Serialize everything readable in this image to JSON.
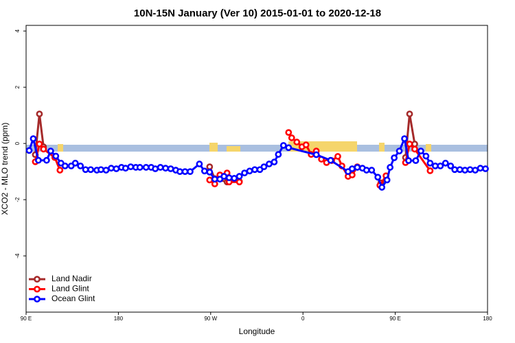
{
  "chart_data": {
    "type": "line",
    "title": "10N-15N January (Ver 10)   2015-01-01 to 2020-12-18",
    "x_label": "Longitude",
    "y_label": "XCO2 - MLO trend (ppm)",
    "xlim": [
      90,
      540
    ],
    "ylim": [
      -6,
      4.2
    ],
    "xticks": [
      {
        "value": 90,
        "label": "90 E"
      },
      {
        "value": 180,
        "label": "180"
      },
      {
        "value": 270,
        "label": "90 W"
      },
      {
        "value": 360,
        "label": "0"
      },
      {
        "value": 450,
        "label": "90 E"
      },
      {
        "value": 540,
        "label": "180"
      }
    ],
    "yticks": [
      -4,
      -2,
      0,
      2,
      4
    ],
    "legend": "bottomleft",
    "series": [
      {
        "name": "Land Nadir",
        "color": "#a52a2a",
        "x": [
          99,
          103,
          107,
          200,
          269,
          274,
          286,
          298,
          400,
          436,
          450,
          460,
          464,
          469
        ],
        "values": [
          -0.4,
          1.05,
          -0.12,
          null,
          -0.83,
          -1.25,
          -1.37,
          -1.35,
          null,
          -1.4,
          null,
          -0.5,
          1.05,
          -0.02
        ]
      },
      {
        "name": "Land Glint",
        "color": "#ff0000",
        "x": [
          99,
          103,
          107,
          118,
          123,
          200,
          269,
          274,
          279,
          286,
          288,
          298,
          320,
          346,
          349,
          354,
          359,
          363,
          368,
          373,
          378,
          383,
          388,
          394,
          398,
          404,
          408,
          413,
          425,
          435,
          441,
          450,
          460,
          464,
          469,
          484
        ],
        "values": [
          -0.65,
          -0.02,
          -0.2,
          -0.5,
          -0.95,
          null,
          -1.3,
          -1.44,
          -1.12,
          -1.05,
          -1.37,
          -1.37,
          null,
          0.39,
          0.2,
          0.05,
          -0.12,
          -0.05,
          -0.39,
          -0.27,
          -0.56,
          -0.68,
          -0.61,
          -0.46,
          -0.8,
          -1.17,
          -1.12,
          -0.83,
          null,
          -1.49,
          -1.15,
          null,
          -0.68,
          -0.02,
          -0.2,
          -0.97
        ]
      },
      {
        "name": "Ocean Glint",
        "color": "#0000ff",
        "x": [
          93,
          97,
          102,
          110,
          114,
          119,
          124,
          128,
          134,
          138,
          143,
          148,
          153,
          159,
          163,
          168,
          173,
          178,
          183,
          187,
          192,
          197,
          201,
          207,
          212,
          216,
          221,
          226,
          231,
          236,
          240,
          245,
          250,
          259,
          264,
          269,
          274,
          279,
          283,
          288,
          293,
          298,
          303,
          308,
          313,
          318,
          322,
          327,
          332,
          336,
          341,
          346,
          373,
          387,
          404,
          408,
          413,
          418,
          422,
          427,
          433,
          437,
          442,
          445,
          449,
          454,
          459,
          463,
          470,
          475,
          480,
          484,
          489,
          494,
          499,
          504,
          508,
          513,
          518,
          523,
          528,
          533,
          538
        ],
        "values": [
          -0.25,
          0.17,
          -0.6,
          -0.6,
          -0.27,
          -0.45,
          -0.7,
          -0.8,
          -0.8,
          -0.7,
          -0.8,
          -0.93,
          -0.93,
          -0.95,
          -0.93,
          -0.95,
          -0.88,
          -0.9,
          -0.85,
          -0.88,
          -0.83,
          -0.85,
          -0.85,
          -0.85,
          -0.85,
          -0.9,
          -0.85,
          -0.88,
          -0.9,
          -0.95,
          -1.0,
          -1.0,
          -1.0,
          -0.73,
          -0.98,
          -1.02,
          -1.27,
          -1.27,
          -1.17,
          -1.22,
          -1.24,
          -1.17,
          -1.05,
          -0.98,
          -0.93,
          -0.93,
          -0.83,
          -0.73,
          -0.66,
          -0.39,
          -0.07,
          -0.15,
          -0.4,
          -0.6,
          -1.0,
          -0.9,
          -0.85,
          -0.88,
          -0.95,
          -0.95,
          -1.2,
          -1.56,
          -1.3,
          -0.85,
          -0.51,
          -0.27,
          0.17,
          -0.61,
          -0.61,
          -0.27,
          -0.45,
          -0.7,
          -0.8,
          -0.8,
          -0.7,
          -0.8,
          -0.93,
          -0.93,
          -0.95,
          -0.93,
          -0.95,
          -0.88,
          -0.9
        ]
      }
    ]
  }
}
